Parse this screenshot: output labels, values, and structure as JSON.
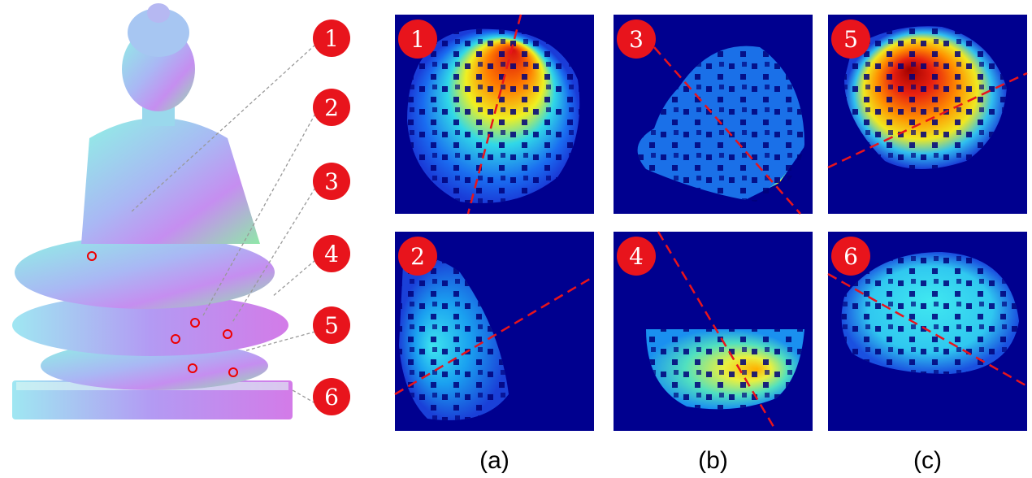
{
  "callouts": [
    "1",
    "2",
    "3",
    "4",
    "5",
    "6"
  ],
  "panels": [
    {
      "label": "1"
    },
    {
      "label": "3"
    },
    {
      "label": "5"
    },
    {
      "label": "2"
    },
    {
      "label": "4"
    },
    {
      "label": "6"
    }
  ],
  "captions": [
    "(a)",
    "(b)",
    "(c)"
  ]
}
